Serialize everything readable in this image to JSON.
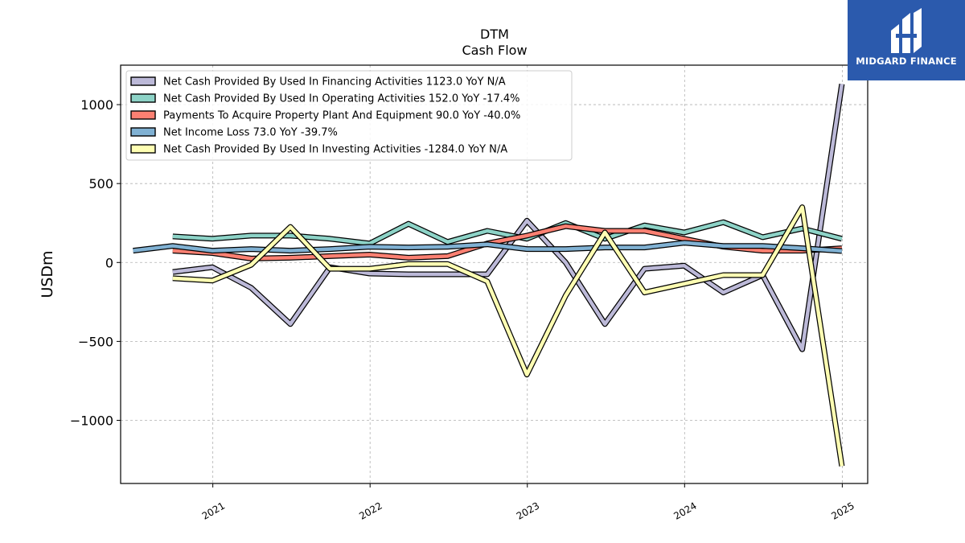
{
  "brand": {
    "name": "MIDGARD FINANCE",
    "color": "#2b5aad"
  },
  "chart_data": {
    "type": "line",
    "title": "DTM",
    "subtitle": "Cash Flow",
    "xlabel": "",
    "ylabel": "USDm",
    "xlim": [
      "2020-06-01",
      "2025-03-01"
    ],
    "ylim": [
      -1400,
      1250
    ],
    "yticks": [
      -1000,
      -500,
      0,
      500,
      1000
    ],
    "xticks": [
      "2021",
      "2022",
      "2023",
      "2024",
      "2025"
    ],
    "grid": true,
    "legend_position": "top-left",
    "series": [
      {
        "name": "Net Cash Provided By Used In Financing Activities",
        "legend": "Net Cash Provided By Used In Financing Activities  1123.0 YoY N/A",
        "color": "#bcb9d8",
        "x": [
          "2020-09-30",
          "2020-12-31",
          "2021-03-31",
          "2021-06-30",
          "2021-09-30",
          "2021-12-31",
          "2022-03-31",
          "2022-06-30",
          "2022-09-30",
          "2022-12-31",
          "2023-03-31",
          "2023-06-30",
          "2023-09-30",
          "2023-12-31",
          "2024-03-31",
          "2024-06-30",
          "2024-09-30",
          "2024-12-31"
        ],
        "values": [
          -60,
          -30,
          -160,
          -390,
          -30,
          -70,
          -75,
          -75,
          -75,
          265,
          0,
          -390,
          -40,
          -20,
          -190,
          -80,
          -550,
          1130
        ]
      },
      {
        "name": "Net Cash Provided By Used In Operating Activities",
        "legend": "Net Cash Provided By Used In Operating Activities  152.0 YoY -17.4%",
        "color": "#8dd3c7",
        "x": [
          "2020-09-30",
          "2020-12-31",
          "2021-03-31",
          "2021-06-30",
          "2021-09-30",
          "2021-12-31",
          "2022-03-31",
          "2022-06-30",
          "2022-09-30",
          "2022-12-31",
          "2023-03-31",
          "2023-06-30",
          "2023-09-30",
          "2023-12-31",
          "2024-03-31",
          "2024-06-30",
          "2024-09-30",
          "2024-12-31"
        ],
        "values": [
          165,
          150,
          170,
          170,
          150,
          120,
          245,
          130,
          200,
          150,
          250,
          150,
          235,
          190,
          255,
          160,
          215,
          150
        ]
      },
      {
        "name": "Payments To Acquire Property Plant And Equipment",
        "legend": "Payments To Acquire Property Plant And Equipment  90.0 YoY -40.0%",
        "color": "#fb8072",
        "x": [
          "2020-09-30",
          "2020-12-31",
          "2021-03-31",
          "2021-06-30",
          "2021-09-30",
          "2021-12-31",
          "2022-03-31",
          "2022-06-30",
          "2022-09-30",
          "2022-12-31",
          "2023-03-31",
          "2023-06-30",
          "2023-09-30",
          "2023-12-31",
          "2024-03-31",
          "2024-06-30",
          "2024-09-30",
          "2024-12-31"
        ],
        "values": [
          75,
          60,
          25,
          30,
          40,
          50,
          30,
          40,
          120,
          170,
          230,
          200,
          200,
          150,
          100,
          75,
          75,
          90
        ]
      },
      {
        "name": "Net Income Loss",
        "legend": "Net Income Loss  73.0 YoY -39.7%",
        "color": "#80b1d3",
        "x": [
          "2020-06-30",
          "2020-09-30",
          "2020-12-31",
          "2021-03-31",
          "2021-06-30",
          "2021-09-30",
          "2021-12-31",
          "2022-03-31",
          "2022-06-30",
          "2022-09-30",
          "2022-12-31",
          "2023-03-31",
          "2023-06-30",
          "2023-09-30",
          "2023-12-31",
          "2024-03-31",
          "2024-06-30",
          "2024-09-30",
          "2024-12-31"
        ],
        "values": [
          75,
          105,
          75,
          85,
          75,
          85,
          100,
          95,
          100,
          115,
          85,
          85,
          95,
          95,
          125,
          105,
          105,
          90,
          73
        ]
      },
      {
        "name": "Net Cash Provided By Used In Investing Activities",
        "legend": "Net Cash Provided By Used In Investing Activities  -1284.0 YoY N/A",
        "color": "#ffffb3",
        "x": [
          "2020-09-30",
          "2020-12-31",
          "2021-03-31",
          "2021-06-30",
          "2021-09-30",
          "2021-12-31",
          "2022-03-31",
          "2022-06-30",
          "2022-09-30",
          "2022-12-31",
          "2023-03-31",
          "2023-06-30",
          "2023-09-30",
          "2023-12-31",
          "2024-03-31",
          "2024-06-30",
          "2024-09-30",
          "2024-12-31"
        ],
        "values": [
          -100,
          -115,
          -15,
          225,
          -40,
          -40,
          -10,
          -10,
          -120,
          -710,
          -210,
          190,
          -190,
          -135,
          -80,
          -80,
          350,
          -1290
        ]
      }
    ]
  }
}
